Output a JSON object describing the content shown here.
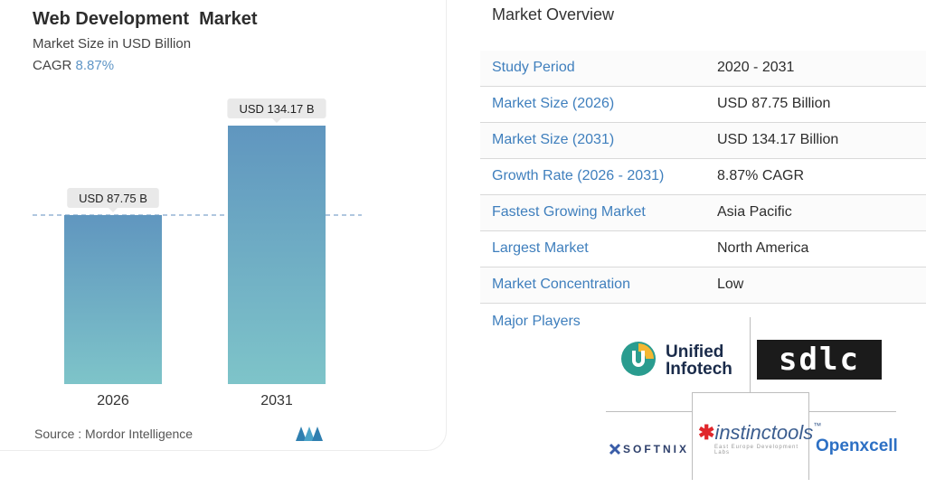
{
  "card": {
    "title": "Web Development  Market",
    "subtitle": "Market Size in USD Billion",
    "cagr_label": "CAGR",
    "cagr_value": "8.87%",
    "source": "Source :  Mordor Intelligence"
  },
  "chart_data": {
    "type": "bar",
    "categories": [
      "2026",
      "2031"
    ],
    "values": [
      87.75,
      134.17
    ],
    "data_labels": [
      "USD 87.75 B",
      "USD 134.17 B"
    ],
    "ylim": [
      0,
      134.17
    ],
    "colors": {
      "bar_top": "#6096bf",
      "bar_bottom": "#7ec4c9",
      "reference_line": "#5f8fbf",
      "label_bg": "#e9e9e9"
    },
    "grid": false
  },
  "overview": {
    "title": "Market Overview",
    "rows": [
      {
        "key": "Study Period",
        "value": "2020 - 2031"
      },
      {
        "key": "Market Size (2026)",
        "value": "USD 87.75 Billion"
      },
      {
        "key": "Market Size (2031)",
        "value": "USD 134.17 Billion"
      },
      {
        "key": "Growth Rate (2026 - 2031)",
        "value": "8.87% CAGR"
      },
      {
        "key": "Fastest Growing Market",
        "value": "Asia Pacific"
      },
      {
        "key": "Largest Market",
        "value": "North America"
      },
      {
        "key": "Market Concentration",
        "value": "Low"
      }
    ]
  },
  "major_players": {
    "label": "Major Players",
    "logos": [
      {
        "name": "Unified Infotech",
        "line1": "Unified",
        "line2": "Infotech",
        "icon": "unified-infotech-logo"
      },
      {
        "name": "sdlc",
        "text": "sdlc",
        "icon": "sdlc-logo"
      },
      {
        "name": "instinctools",
        "text": "instinctools",
        "tm": "™",
        "tagline": "East Europe Development Labs",
        "icon": "instinctools-logo"
      },
      {
        "name": "SOFTNIX",
        "text": "SOFTNIX",
        "icon": "softnix-logo"
      },
      {
        "name": "Openxcell",
        "text": "Openxcell",
        "icon": "openxcell-logo"
      }
    ]
  }
}
